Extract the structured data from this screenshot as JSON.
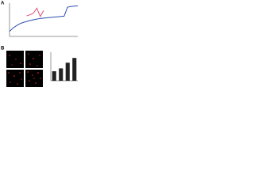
{
  "panels": [
    "A",
    "B"
  ],
  "chart_data": [
    {
      "type": "line",
      "x": [
        0,
        5,
        10,
        15,
        20,
        25,
        30,
        35,
        40,
        45,
        50,
        55,
        60,
        65,
        70,
        75,
        80,
        85,
        90,
        95,
        100
      ],
      "xlim": [
        0,
        100
      ],
      "ylim": [
        0,
        100
      ],
      "series": [
        {
          "name": null,
          "color": "#2a4fb0",
          "values": [
            15,
            25,
            32,
            38,
            42,
            45,
            48,
            50,
            52,
            54,
            55,
            56,
            57,
            58,
            59,
            60,
            61,
            88,
            90,
            91,
            92
          ]
        },
        {
          "name": null,
          "color": "#e0507a",
          "values": [
            null,
            null,
            null,
            null,
            null,
            62,
            65,
            70,
            85,
            60,
            78,
            null,
            null,
            null,
            null,
            null,
            null,
            null,
            null,
            null,
            null
          ]
        }
      ]
    },
    {
      "type": "bar",
      "categories": [
        null,
        null,
        null,
        null
      ],
      "values": [
        1.0,
        1.3,
        1.9,
        2.4
      ],
      "color": "#222222",
      "ylim": [
        0,
        3
      ]
    }
  ]
}
